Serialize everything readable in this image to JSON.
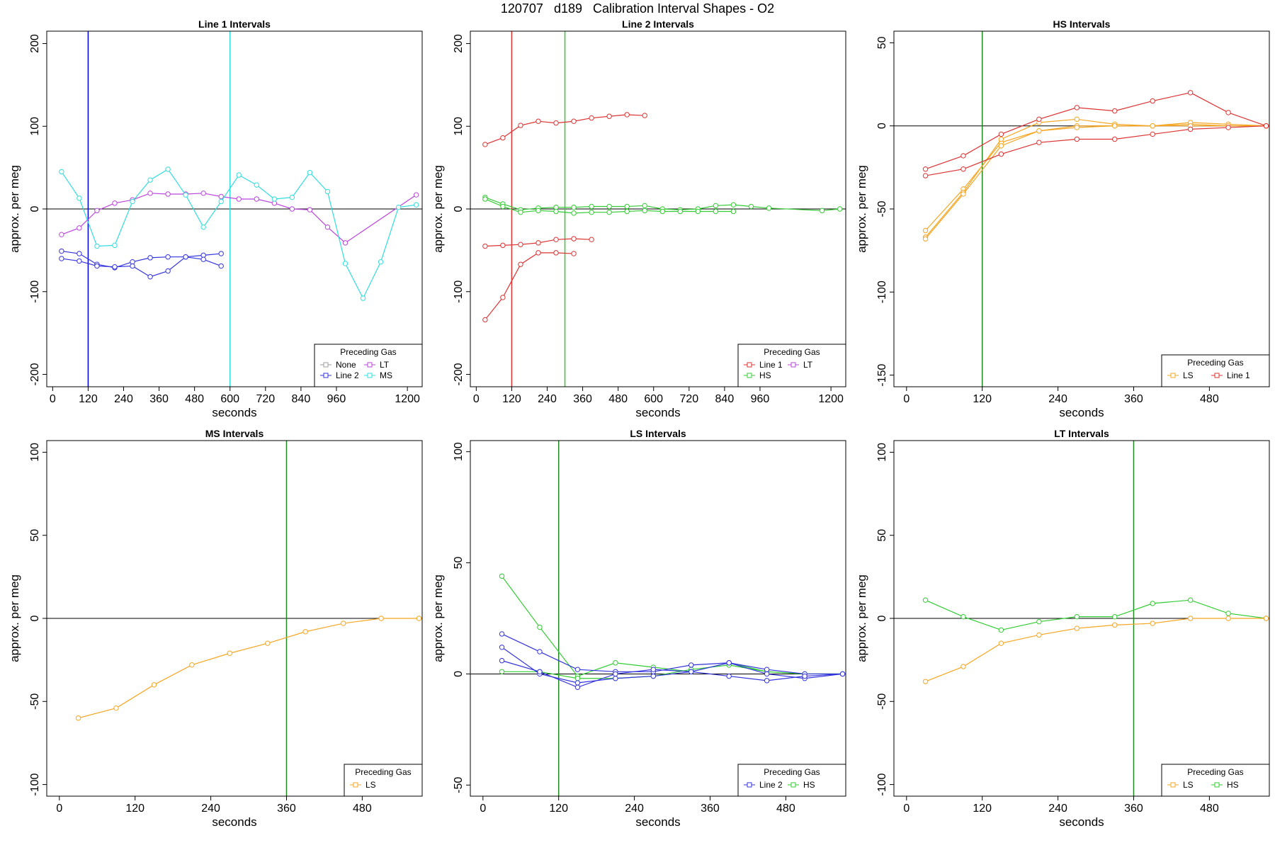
{
  "figure_title": "120707   d189   Calibration Interval Shapes - O2",
  "chart_data": [
    {
      "type": "line",
      "title": "Line 1 Intervals",
      "xlabel": "seconds",
      "ylabel": "approx. per meg",
      "xlim": [
        -20,
        1250
      ],
      "ylim": [
        -215,
        215
      ],
      "xticks": [
        0,
        120,
        240,
        360,
        480,
        600,
        720,
        840,
        960,
        1200
      ],
      "yticks": [
        -200,
        -100,
        0,
        100,
        200
      ],
      "hline": 0,
      "vlines": [
        {
          "x": 120,
          "color": "#0000dd"
        },
        {
          "x": 600,
          "color": "#33dddd"
        }
      ],
      "legend": {
        "title": "Preceding Gas",
        "position": "bottom-right",
        "columns": 2,
        "entries": [
          {
            "label": "None",
            "color": "#9e9e9e"
          },
          {
            "label": "LT",
            "color": "#bb44dd"
          },
          {
            "label": "Line 2",
            "color": "#3333dd"
          },
          {
            "label": "MS",
            "color": "#33dddd"
          }
        ]
      },
      "series": [
        {
          "name": "LT",
          "color": "#bb44dd",
          "x": [
            30,
            90,
            150,
            210,
            270,
            330,
            390,
            450,
            510,
            570,
            630,
            690,
            750,
            810,
            870,
            930,
            990,
            1230
          ],
          "y": [
            -31,
            -23,
            -2,
            7,
            11,
            19,
            18,
            18,
            19,
            15,
            12,
            12,
            7,
            0,
            -1,
            -22,
            -41,
            17
          ]
        },
        {
          "name": "MS",
          "color": "#33dddd",
          "x": [
            30,
            90,
            150,
            210,
            270,
            330,
            390,
            450,
            510,
            570,
            630,
            690,
            750,
            810,
            870,
            930,
            990,
            1050,
            1110,
            1170,
            1230
          ],
          "y": [
            45,
            13,
            -45,
            -44,
            9,
            35,
            48,
            17,
            -22,
            9,
            41,
            29,
            12,
            14,
            44,
            21,
            -66,
            -108,
            -64,
            2,
            5
          ]
        },
        {
          "name": "Line 2",
          "color": "#3333dd",
          "x": [
            30,
            90,
            150,
            210,
            270,
            330,
            390,
            450,
            510,
            570
          ],
          "y": [
            -51,
            -54,
            -67,
            -71,
            -64,
            -59,
            -58,
            -58,
            -56,
            -54
          ]
        },
        {
          "name": "Line 2",
          "color": "#3333dd",
          "x": [
            30,
            90,
            150,
            210,
            270,
            330,
            390,
            450,
            510,
            570
          ],
          "y": [
            -60,
            -63,
            -69,
            -70,
            -69,
            -82,
            -75,
            -58,
            -61,
            -69
          ]
        }
      ]
    },
    {
      "type": "line",
      "title": "Line 2 Intervals",
      "xlabel": "seconds",
      "ylabel": "approx. per meg",
      "xlim": [
        -20,
        1250
      ],
      "ylim": [
        -215,
        215
      ],
      "xticks": [
        0,
        120,
        240,
        360,
        480,
        600,
        720,
        840,
        960,
        1200
      ],
      "yticks": [
        -200,
        -100,
        0,
        100,
        200
      ],
      "hline": 0,
      "vlines": [
        {
          "x": 120,
          "color": "#dd3333"
        },
        {
          "x": 300,
          "color": "#33cc33"
        }
      ],
      "legend": {
        "title": "Preceding Gas",
        "position": "bottom-right",
        "columns": 2,
        "entries": [
          {
            "label": "Line 1",
            "color": "#dd3333"
          },
          {
            "label": "LT",
            "color": "#bb44dd"
          },
          {
            "label": "HS",
            "color": "#33cc33"
          }
        ]
      },
      "series": [
        {
          "name": "Line 1",
          "color": "#dd3333",
          "x": [
            30,
            90,
            150,
            210,
            270,
            330,
            390,
            450,
            510,
            570
          ],
          "y": [
            78,
            86,
            101,
            106,
            104,
            106,
            110,
            112,
            114,
            113
          ]
        },
        {
          "name": "Line 1",
          "color": "#dd3333",
          "x": [
            30,
            90,
            150,
            210,
            270,
            330,
            390
          ],
          "y": [
            -45,
            -44,
            -43,
            -41,
            -37,
            -36,
            -37
          ]
        },
        {
          "name": "Line 1",
          "color": "#dd3333",
          "x": [
            30,
            90,
            150,
            210,
            270,
            330
          ],
          "y": [
            -134,
            -107,
            -67,
            -53,
            -53,
            -54
          ]
        },
        {
          "name": "HS",
          "color": "#33cc33",
          "x": [
            30,
            90,
            150,
            210,
            270,
            330,
            390,
            450,
            510,
            570,
            630,
            690,
            750,
            810,
            870,
            930,
            990,
            1170,
            1230
          ],
          "y": [
            14,
            6,
            -1,
            1,
            2,
            2,
            3,
            3,
            3,
            4,
            0,
            -1,
            0,
            4,
            5,
            3,
            1,
            -2,
            0
          ]
        },
        {
          "name": "HS",
          "color": "#33cc33",
          "x": [
            30,
            90,
            150,
            210,
            270,
            330,
            390,
            450,
            510,
            570,
            630,
            690,
            750,
            810,
            870
          ],
          "y": [
            12,
            3,
            -4,
            -2,
            -3,
            -5,
            -4,
            -4,
            -3,
            -2,
            -3,
            -3,
            -3,
            -3,
            -3
          ]
        }
      ]
    },
    {
      "type": "line",
      "title": "HS Intervals",
      "xlabel": "seconds",
      "ylabel": "approx. per meg",
      "xlim": [
        -20,
        575
      ],
      "ylim": [
        -157,
        57
      ],
      "xticks": [
        0,
        120,
        240,
        360,
        480
      ],
      "yticks": [
        -150,
        -100,
        -50,
        0,
        50
      ],
      "hline": 0,
      "vlines": [
        {
          "x": 120,
          "color": "#228822"
        }
      ],
      "legend": {
        "title": "Preceding Gas",
        "position": "bottom-right",
        "columns": 2,
        "entries": [
          {
            "label": "LS",
            "color": "#f5a623"
          },
          {
            "label": "Line 1",
            "color": "#dd3333"
          }
        ]
      },
      "series": [
        {
          "name": "LS",
          "color": "#f5a623",
          "x": [
            30,
            90,
            150,
            210,
            270,
            330,
            390,
            450,
            510,
            570
          ],
          "y": [
            -63,
            -38,
            -10,
            -3,
            0,
            0,
            0,
            1,
            0,
            0
          ]
        },
        {
          "name": "LS",
          "color": "#f5a623",
          "x": [
            30,
            90,
            150,
            210,
            270,
            330,
            390,
            450,
            510,
            570
          ],
          "y": [
            -67,
            -40,
            -8,
            2,
            4,
            1,
            0,
            2,
            1,
            0
          ]
        },
        {
          "name": "LS",
          "color": "#f5a623",
          "x": [
            30,
            90,
            150,
            210,
            270,
            330,
            390,
            450,
            510,
            570
          ],
          "y": [
            -68,
            -41,
            -12,
            -3,
            -1,
            0,
            0,
            0,
            0,
            0
          ]
        },
        {
          "name": "Line 1",
          "color": "#dd3333",
          "x": [
            30,
            90,
            150,
            210,
            270,
            330,
            390,
            450,
            510,
            570
          ],
          "y": [
            -26,
            -18,
            -5,
            4,
            11,
            9,
            15,
            20,
            8,
            0
          ]
        },
        {
          "name": "Line 1",
          "color": "#dd3333",
          "x": [
            30,
            90,
            150,
            210,
            270,
            330,
            390,
            450,
            510,
            570
          ],
          "y": [
            -30,
            -26,
            -17,
            -10,
            -8,
            -8,
            -5,
            -2,
            -1,
            0
          ]
        }
      ]
    },
    {
      "type": "line",
      "title": "MS Intervals",
      "xlabel": "seconds",
      "ylabel": "approx. per meg",
      "xlim": [
        -20,
        575
      ],
      "ylim": [
        -107,
        107
      ],
      "xticks": [
        0,
        120,
        240,
        360,
        480
      ],
      "yticks": [
        -100,
        -50,
        0,
        50,
        100
      ],
      "hline": 0,
      "vlines": [
        {
          "x": 360,
          "color": "#228822"
        }
      ],
      "legend": {
        "title": "Preceding Gas",
        "position": "bottom-right",
        "columns": 1,
        "entries": [
          {
            "label": "LS",
            "color": "#f5a623"
          }
        ]
      },
      "series": [
        {
          "name": "LS",
          "color": "#f5a623",
          "x": [
            30,
            90,
            150,
            210,
            270,
            330,
            390,
            450,
            510,
            570
          ],
          "y": [
            -60,
            -54,
            -40,
            -28,
            -21,
            -15,
            -8,
            -3,
            0,
            0
          ]
        }
      ]
    },
    {
      "type": "line",
      "title": "LS Intervals",
      "xlabel": "seconds",
      "ylabel": "approx. per meg",
      "xlim": [
        -20,
        575
      ],
      "ylim": [
        -55,
        105
      ],
      "xticks": [
        0,
        120,
        240,
        360,
        480
      ],
      "yticks": [
        -50,
        0,
        50,
        100
      ],
      "hline": 0,
      "vlines": [
        {
          "x": 120,
          "color": "#228822"
        }
      ],
      "legend": {
        "title": "Preceding Gas",
        "position": "bottom-right",
        "columns": 2,
        "entries": [
          {
            "label": "Line 2",
            "color": "#3333dd"
          },
          {
            "label": "HS",
            "color": "#33cc33"
          }
        ]
      },
      "series": [
        {
          "name": "HS",
          "color": "#33cc33",
          "x": [
            30,
            90,
            150,
            210,
            270,
            330,
            390,
            450,
            510,
            570
          ],
          "y": [
            44,
            21,
            -1,
            5,
            3,
            1,
            5,
            1,
            0,
            0
          ]
        },
        {
          "name": "HS",
          "color": "#33cc33",
          "x": [
            30,
            90,
            150,
            210,
            270,
            330,
            390,
            450,
            510,
            570
          ],
          "y": [
            1,
            1,
            -2,
            -2,
            -1,
            2,
            4,
            1,
            0,
            0
          ]
        },
        {
          "name": "Line 2",
          "color": "#3333dd",
          "x": [
            30,
            90,
            150,
            210,
            270,
            330,
            390,
            450,
            510,
            570
          ],
          "y": [
            18,
            10,
            2,
            1,
            1,
            4,
            5,
            2,
            0,
            0
          ]
        },
        {
          "name": "Line 2",
          "color": "#3333dd",
          "x": [
            30,
            90,
            150,
            210,
            270,
            330,
            390,
            450,
            510,
            570
          ],
          "y": [
            12,
            0,
            -4,
            -2,
            -1,
            1,
            5,
            0,
            -2,
            0
          ]
        },
        {
          "name": "Line 2",
          "color": "#3333dd",
          "x": [
            30,
            90,
            150,
            210,
            270,
            330,
            390,
            450,
            510,
            570
          ],
          "y": [
            6,
            1,
            -6,
            0,
            2,
            1,
            -1,
            -3,
            -1,
            0
          ]
        }
      ]
    },
    {
      "type": "line",
      "title": "LT Intervals",
      "xlabel": "seconds",
      "ylabel": "approx. per meg",
      "xlim": [
        -20,
        575
      ],
      "ylim": [
        -107,
        107
      ],
      "xticks": [
        0,
        120,
        240,
        360,
        480
      ],
      "yticks": [
        -100,
        -50,
        0,
        50,
        100
      ],
      "hline": 0,
      "vlines": [
        {
          "x": 360,
          "color": "#228822"
        }
      ],
      "legend": {
        "title": "Preceding Gas",
        "position": "bottom-right",
        "columns": 2,
        "entries": [
          {
            "label": "LS",
            "color": "#f5a623"
          },
          {
            "label": "HS",
            "color": "#33cc33"
          }
        ]
      },
      "series": [
        {
          "name": "HS",
          "color": "#33cc33",
          "x": [
            30,
            90,
            150,
            210,
            270,
            330,
            390,
            450,
            510,
            570
          ],
          "y": [
            11,
            1,
            -7,
            -2,
            1,
            1,
            9,
            11,
            3,
            0
          ]
        },
        {
          "name": "LS",
          "color": "#f5a623",
          "x": [
            30,
            90,
            150,
            210,
            270,
            330,
            390,
            450,
            510,
            570
          ],
          "y": [
            -38,
            -29,
            -15,
            -10,
            -6,
            -4,
            -3,
            0,
            0,
            0
          ]
        }
      ]
    }
  ]
}
